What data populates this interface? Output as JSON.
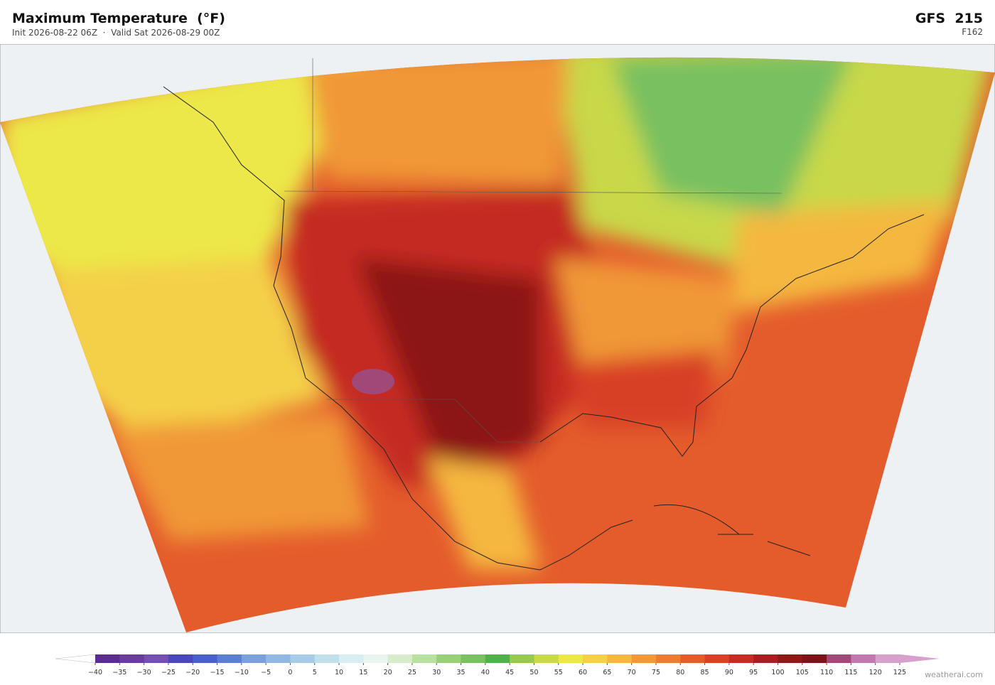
{
  "header": {
    "title": "Maximum Temperature  (°F)",
    "subtitle": "Init 2026-08-22 06Z  ·  Valid Sat 2026-08-29 00Z",
    "model": "GFS  215",
    "forecast_hour": "F162"
  },
  "colorbar": {
    "min": -40,
    "max": 125,
    "ticks": [
      {
        "value": -40,
        "label": "−40"
      },
      {
        "value": -35,
        "label": "−35"
      },
      {
        "value": -30,
        "label": "−30"
      },
      {
        "value": -25,
        "label": "−25"
      },
      {
        "value": -20,
        "label": "−20"
      },
      {
        "value": -15,
        "label": "−15"
      },
      {
        "value": -10,
        "label": "−10"
      },
      {
        "value": -5,
        "label": "−5"
      },
      0,
      5,
      10,
      15,
      20,
      25,
      30,
      35,
      40,
      45,
      50,
      55,
      60,
      65,
      70,
      75,
      80,
      85,
      90,
      95,
      100,
      105,
      110,
      115,
      120,
      125
    ],
    "colors": [
      "#5b2d8e",
      "#6a3d9a",
      "#7450b0",
      "#4848b8",
      "#4a5fc8",
      "#5b7fd0",
      "#7aa0dc",
      "#90b8e0",
      "#a8cce8",
      "#c0e0ee",
      "#d8eef0",
      "#e8f4ee",
      "#d6eccb",
      "#b8e0a0",
      "#98d078",
      "#78c060",
      "#50b04a",
      "#98c850",
      "#c8d848",
      "#ece848",
      "#f4d048",
      "#f4b840",
      "#f09838",
      "#ec7c34",
      "#e45c2c",
      "#d84028",
      "#c42c24",
      "#a81e20",
      "#8c1818",
      "#7a1418",
      "#a04878",
      "#c078b0",
      "#d8a0cc"
    ],
    "under_color": "#ffffff",
    "over_color": "#d8a0cc"
  },
  "footer": {
    "credit": "weatherai.com"
  }
}
